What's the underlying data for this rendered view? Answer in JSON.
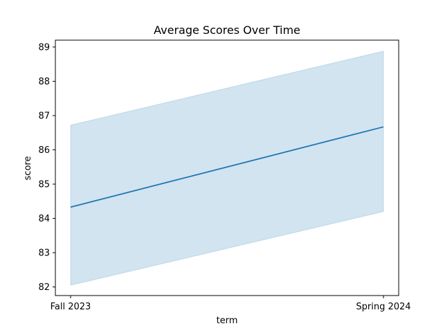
{
  "chart_data": {
    "type": "line",
    "title": "Average Scores Over Time",
    "xlabel": "term",
    "ylabel": "score",
    "categories": [
      "Fall 2023",
      "Spring 2024"
    ],
    "series": [
      {
        "values": [
          84.33,
          86.67
        ],
        "ci_lower": [
          82.05,
          84.2
        ],
        "ci_upper": [
          86.72,
          88.88
        ],
        "color": "#1f77b4",
        "band_color": "#1f77b4"
      }
    ],
    "ylim": [
      81.75,
      89.2
    ],
    "yticks": [
      82,
      83,
      84,
      85,
      86,
      87,
      88,
      89
    ],
    "grid": false
  }
}
